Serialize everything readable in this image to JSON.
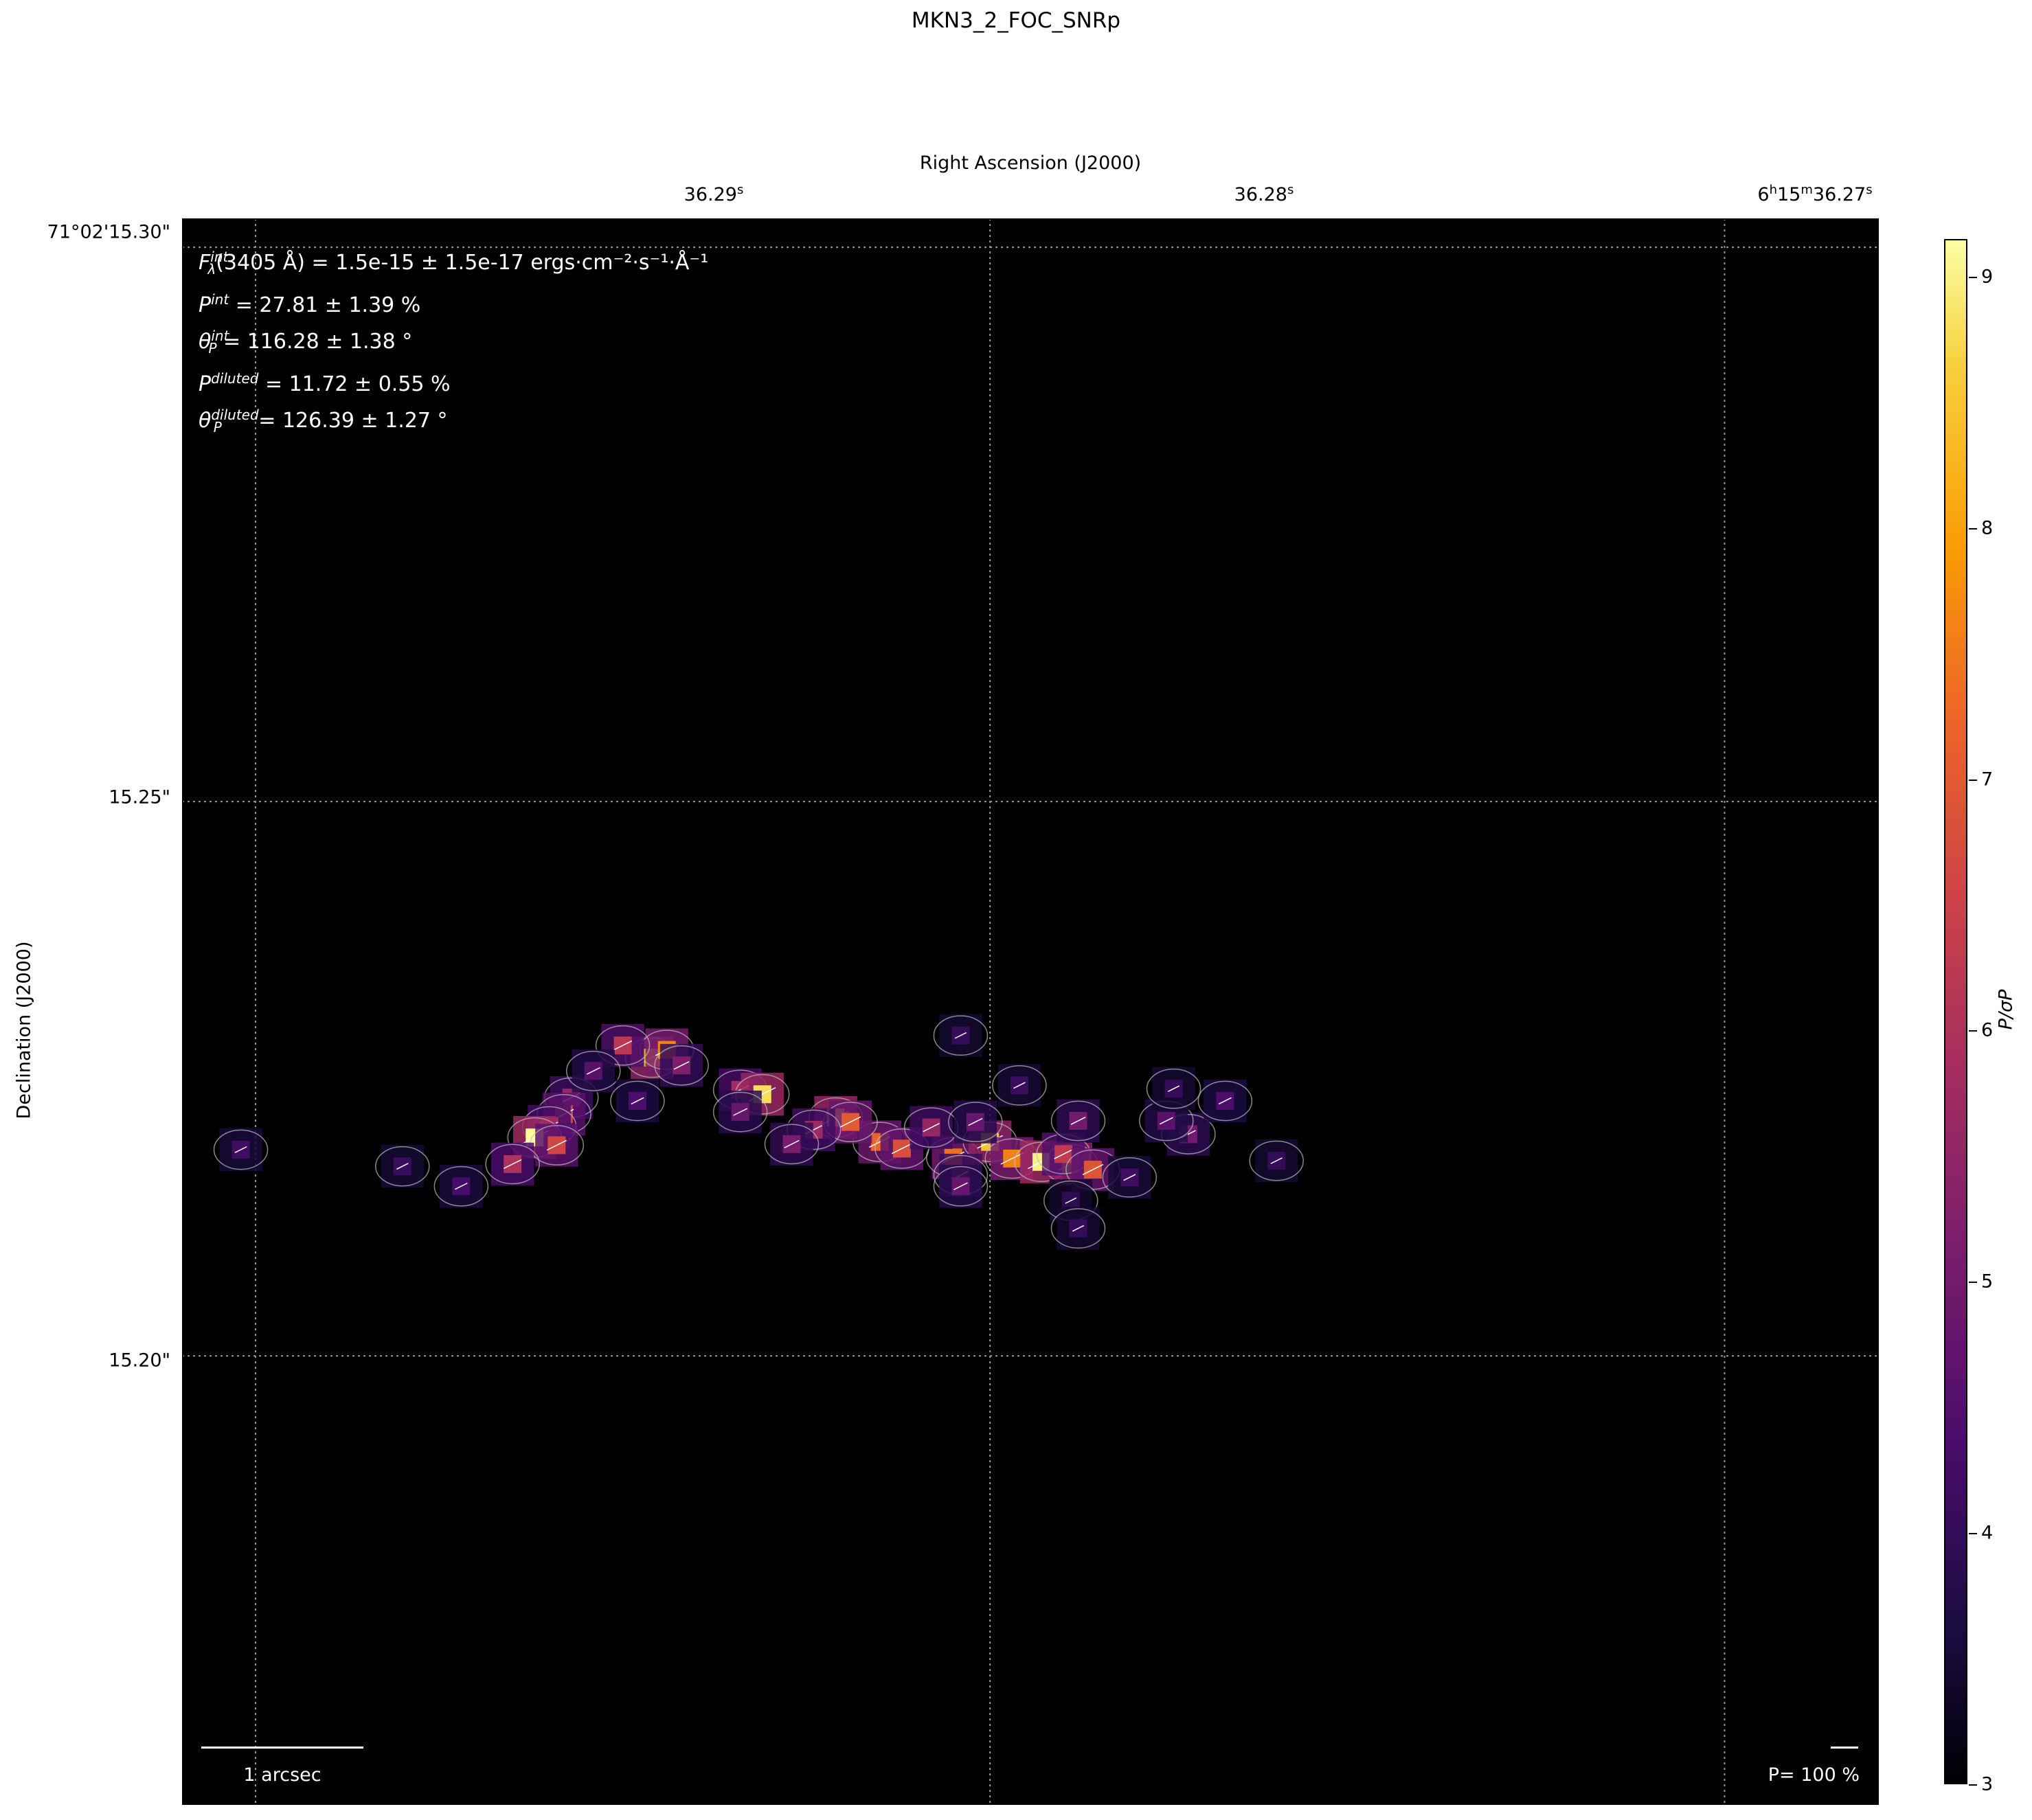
{
  "figure": {
    "title": "MKN3_2_FOC_SNRp",
    "xlabel": "Right Ascension (J2000)",
    "ylabel": "Declination (J2000)"
  },
  "axes": {
    "xticks": [
      {
        "label": "36.29s",
        "text_main": "36.29",
        "text_sup": "s"
      },
      {
        "label": "36.28s",
        "text_main": "36.28",
        "text_sup": "s"
      },
      {
        "label": "6h15m36.27s",
        "text_main": "6",
        "text_sup": "h",
        "text_main2": "15",
        "text_sup2": "m",
        "text_main3": "36.27",
        "text_sup3": "s"
      }
    ],
    "yticks": [
      "71°02'15.30\"",
      "15.25\"",
      "15.20\""
    ]
  },
  "annotations": {
    "flux": "(3405 Å) = 1.5e-15 ± 1.5e-17 ergs·cm⁻²·s⁻¹·Å⁻¹",
    "p_int": " = 27.81 ± 1.39 %",
    "theta_int": " = 116.28 ± 1.38 °",
    "p_diluted": " = 11.72 ± 0.55 %",
    "theta_diluted": " = 126.39 ± 1.27 °",
    "scale_label": "1 arcsec",
    "pscale_label": "P= 100 %"
  },
  "colorbar": {
    "label": "P/σP",
    "ticks": [
      3,
      4,
      5,
      6,
      7,
      8,
      9
    ],
    "range": [
      3,
      9.15
    ],
    "colormap": "inferno"
  },
  "chart_data": {
    "type": "heatmap",
    "title": "MKN3_2_FOC_SNRp",
    "xlabel": "Right Ascension (J2000)",
    "ylabel": "Declination (J2000)",
    "x_ticks": [
      "36.29s",
      "36.28s",
      "6h15m36.27s"
    ],
    "y_ticks": [
      "71°02'15.30\"",
      "15.25\"",
      "15.20\""
    ],
    "x_range_seconds": [
      36.291,
      36.2679
    ],
    "y_range_arcsec": [
      15.1595,
      15.3026
    ],
    "colorbar": {
      "label": "P/σP",
      "min": 3,
      "max": 9.15,
      "colormap": "inferno"
    },
    "grid": true,
    "features": [
      {
        "ra_s": 36.2846,
        "dec_as": 15.2269,
        "snr": 8.4
      },
      {
        "ra_s": 36.2844,
        "dec_as": 15.2276,
        "snr": 7.6
      },
      {
        "ra_s": 36.2842,
        "dec_as": 15.2262,
        "snr": 5.2
      },
      {
        "ra_s": 36.285,
        "dec_as": 15.228,
        "snr": 6.2
      },
      {
        "ra_s": 36.2834,
        "dec_as": 15.224,
        "snr": 5.8
      },
      {
        "ra_s": 36.2831,
        "dec_as": 15.2236,
        "snr": 8.8
      },
      {
        "ra_s": 36.2834,
        "dec_as": 15.222,
        "snr": 4.8
      },
      {
        "ra_s": 36.2857,
        "dec_as": 15.2233,
        "snr": 5.6
      },
      {
        "ra_s": 36.2858,
        "dec_as": 15.2218,
        "snr": 6.5
      },
      {
        "ra_s": 36.286,
        "dec_as": 15.2207,
        "snr": 5.9
      },
      {
        "ra_s": 36.2862,
        "dec_as": 15.2197,
        "snr": 9.1
      },
      {
        "ra_s": 36.2859,
        "dec_as": 15.219,
        "snr": 6.6
      },
      {
        "ra_s": 36.2815,
        "dec_as": 15.2193,
        "snr": 7.2
      },
      {
        "ra_s": 36.2812,
        "dec_as": 15.2187,
        "snr": 6.8
      },
      {
        "ra_s": 36.2805,
        "dec_as": 15.2179,
        "snr": 7.4
      },
      {
        "ra_s": 36.28,
        "dec_as": 15.2193,
        "snr": 8.5
      },
      {
        "ra_s": 36.2797,
        "dec_as": 15.2178,
        "snr": 7.6
      },
      {
        "ra_s": 36.2793,
        "dec_as": 15.2175,
        "snr": 9.0
      },
      {
        "ra_s": 36.2789,
        "dec_as": 15.2173,
        "snr": 8.2
      },
      {
        "ra_s": 36.279,
        "dec_as": 15.2182,
        "snr": 6.3
      },
      {
        "ra_s": 36.2786,
        "dec_as": 15.2168,
        "snr": 6.9
      },
      {
        "ra_s": 36.2804,
        "dec_as": 15.2163,
        "snr": 5.4
      },
      {
        "ra_s": 36.2808,
        "dec_as": 15.2206,
        "snr": 5.6
      },
      {
        "ra_s": 36.2802,
        "dec_as": 15.2211,
        "snr": 4.8
      },
      {
        "ra_s": 36.2821,
        "dec_as": 15.2215,
        "snr": 8.7
      },
      {
        "ra_s": 36.2819,
        "dec_as": 15.2211,
        "snr": 7.0
      },
      {
        "ra_s": 36.2824,
        "dec_as": 15.2204,
        "snr": 5.7
      },
      {
        "ra_s": 36.2827,
        "dec_as": 15.2191,
        "snr": 5.1
      },
      {
        "ra_s": 36.2773,
        "dec_as": 15.22,
        "snr": 5.0
      },
      {
        "ra_s": 36.2776,
        "dec_as": 15.2212,
        "snr": 4.6
      },
      {
        "ra_s": 36.2768,
        "dec_as": 15.223,
        "snr": 4.4
      },
      {
        "ra_s": 36.2775,
        "dec_as": 15.2241,
        "snr": 4.0
      },
      {
        "ra_s": 36.2804,
        "dec_as": 15.2153,
        "snr": 4.8
      },
      {
        "ra_s": 36.2865,
        "dec_as": 15.2173,
        "snr": 6.0
      },
      {
        "ra_s": 36.2854,
        "dec_as": 15.2257,
        "snr": 4.6
      },
      {
        "ra_s": 36.2848,
        "dec_as": 15.223,
        "snr": 4.4
      },
      {
        "ra_s": 36.2796,
        "dec_as": 15.2244,
        "snr": 4.1
      },
      {
        "ra_s": 36.2761,
        "dec_as": 15.2176,
        "snr": 4.0
      },
      {
        "ra_s": 36.2872,
        "dec_as": 15.2153,
        "snr": 4.3
      },
      {
        "ra_s": 36.2781,
        "dec_as": 15.2161,
        "snr": 4.2
      },
      {
        "ra_s": 36.2789,
        "dec_as": 15.214,
        "snr": 3.9
      },
      {
        "ra_s": 36.2788,
        "dec_as": 15.2115,
        "snr": 4.0
      },
      {
        "ra_s": 36.2902,
        "dec_as": 15.2186,
        "snr": 4.2
      },
      {
        "ra_s": 36.288,
        "dec_as": 15.2171,
        "snr": 4.1
      },
      {
        "ra_s": 36.2788,
        "dec_as": 15.2212,
        "snr": 5.0
      },
      {
        "ra_s": 36.2804,
        "dec_as": 15.2289,
        "snr": 4.0
      }
    ]
  }
}
